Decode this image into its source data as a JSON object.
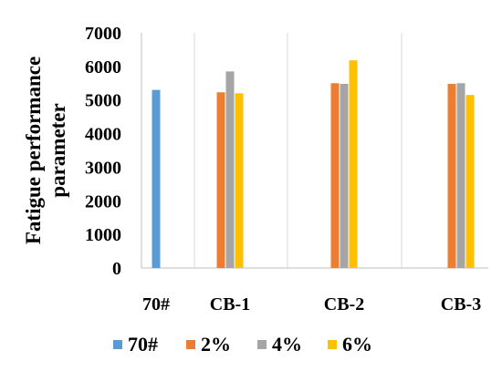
{
  "chart_data": {
    "type": "bar",
    "title": "",
    "xlabel": "",
    "ylabel": "Fatigue performance parameter",
    "ylabel_lines": [
      "Fatigue performance",
      "parameter"
    ],
    "ylim": [
      0,
      7000
    ],
    "yticks": [
      0,
      1000,
      2000,
      3000,
      4000,
      5000,
      6000,
      7000
    ],
    "grid": "vertical",
    "legend": "bottom",
    "groups": [
      {
        "label": "70#",
        "bars": [
          {
            "series": "70#",
            "value": 5300
          }
        ]
      },
      {
        "label": "CB-1",
        "bars": [
          {
            "series": "2%",
            "value": 5230
          },
          {
            "series": "4%",
            "value": 5850
          },
          {
            "series": "6%",
            "value": 5200
          }
        ]
      },
      {
        "label": "CB-2",
        "bars": [
          {
            "series": "2%",
            "value": 5500
          },
          {
            "series": "4%",
            "value": 5480
          },
          {
            "series": "6%",
            "value": 6180
          }
        ]
      },
      {
        "label": "CB-3",
        "bars": [
          {
            "series": "2%",
            "value": 5480
          },
          {
            "series": "4%",
            "value": 5500
          },
          {
            "series": "6%",
            "value": 5150
          }
        ]
      }
    ],
    "series": [
      {
        "name": "70#",
        "color": "#5B9BD5"
      },
      {
        "name": "2%",
        "color": "#ED7D31"
      },
      {
        "name": "4%",
        "color": "#A5A5A5"
      },
      {
        "name": "6%",
        "color": "#FFC000"
      }
    ]
  }
}
